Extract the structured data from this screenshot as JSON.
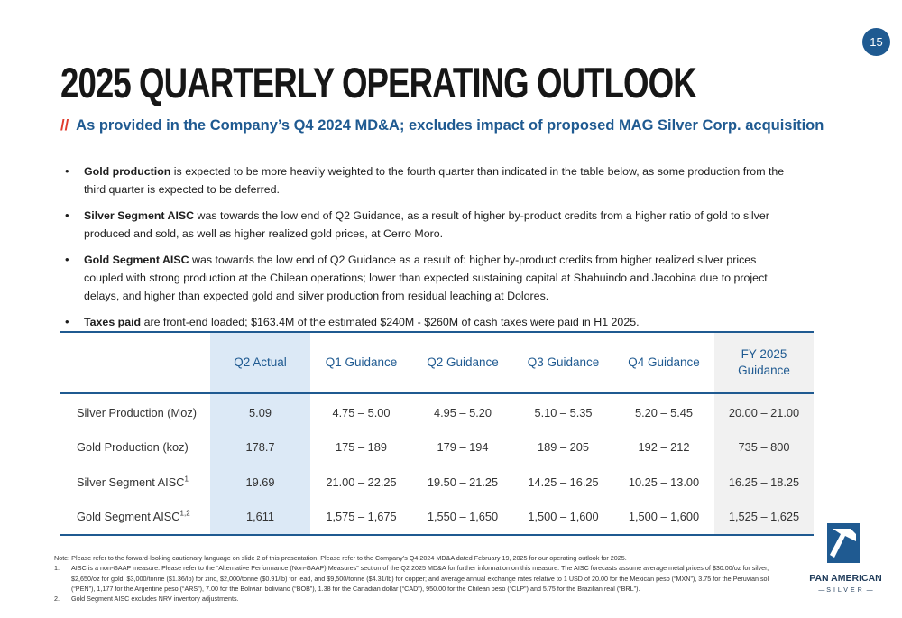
{
  "page_number": "15",
  "title": "2025 QUARTERLY OPERATING OUTLOOK",
  "subtitle": {
    "slashes": "//",
    "text": "As provided in the Company’s Q4 2024 MD&A; excludes impact of proposed MAG Silver Corp. acquisition"
  },
  "bullets": [
    {
      "bold": "Gold production",
      "text": " is expected to be more heavily weighted to the fourth quarter than indicated in the table below, as some production from the third quarter is expected to be deferred."
    },
    {
      "bold": "Silver Segment AISC",
      "text": " was towards the low end of Q2 Guidance, as a result of higher by-product credits from a higher ratio of gold to silver produced and sold, as well as higher realized gold prices, at Cerro Moro."
    },
    {
      "bold": "Gold Segment AISC",
      "text": " was towards the low end of Q2 Guidance as a result of: higher by-product credits from higher realized silver prices coupled with strong production at the Chilean operations; lower than expected sustaining capital at Shahuindo and Jacobina due to project delays, and higher than expected gold and silver production from residual leaching at Dolores."
    },
    {
      "bold": "Taxes paid",
      "text": " are front-end loaded; $163.4M of the estimated $240M - $260M of cash taxes were paid in H1 2025."
    }
  ],
  "table": {
    "headers": [
      "",
      "Q2 Actual",
      "Q1 Guidance",
      "Q2 Guidance",
      "Q3 Guidance",
      "Q4 Guidance",
      "FY 2025 Guidance"
    ],
    "rows": [
      {
        "label": "Silver Production (Moz)",
        "sup": "",
        "cells": [
          "5.09",
          "4.75 – 5.00",
          "4.95 – 5.20",
          "5.10 – 5.35",
          "5.20 – 5.45",
          "20.00 – 21.00"
        ]
      },
      {
        "label": "Gold Production (koz)",
        "sup": "",
        "cells": [
          "178.7",
          "175 – 189",
          "179 – 194",
          "189 – 205",
          "192 – 212",
          "735 – 800"
        ]
      },
      {
        "label": "Silver Segment AISC",
        "sup": "1",
        "cells": [
          "19.69",
          "21.00 – 22.25",
          "19.50 – 21.25",
          "14.25 – 16.25",
          "10.25 – 13.00",
          "16.25 – 18.25"
        ]
      },
      {
        "label": "Gold Segment AISC",
        "sup": "1,2",
        "cells": [
          "1,611",
          "1,575 – 1,675",
          "1,550 – 1,650",
          "1,500 – 1,600",
          "1,500 – 1,600",
          "1,525 – 1,625"
        ]
      }
    ]
  },
  "notes": {
    "main": "Note: Please refer to the forward-looking cautionary language on slide 2 of this presentation. Please refer to the Company’s Q4 2024 MD&A dated February 19, 2025 for our operating outlook for 2025.",
    "footnotes": [
      {
        "num": "1.",
        "text": "AISC is a non-GAAP measure. Please refer to the “Alternative Performance (Non-GAAP) Measures” section of the Q2 2025 MD&A for further information on this measure. The AISC forecasts assume average metal prices of $30.00/oz for silver, $2,650/oz for gold, $3,000/tonne ($1.36/lb) for zinc, $2,000/tonne ($0.91/lb) for lead, and $9,500/tonne ($4.31/lb) for copper; and average annual exchange rates relative to 1 USD of 20.00 for the Mexican peso (“MXN”), 3.75 for the Peruvian sol (“PEN”), 1,177 for the Argentine peso (“ARS”), 7.00 for the Bolivian boliviano (“BOB”), 1.38 for the Canadian dollar (“CAD”), 950.00 for the Chilean peso (“CLP”) and 5.75 for the Brazilian real (“BRL”)."
      },
      {
        "num": "2.",
        "text": "Gold Segment AISC excludes NRV inventory adjustments."
      }
    ]
  },
  "logo": {
    "name": "PAN AMERICAN",
    "sub": "SILVER",
    "icon": "pan-american-logo-icon"
  },
  "colors": {
    "brand_blue": "#1f5a91",
    "accent_red": "#e03b2c",
    "highlight_col": "#dce9f6",
    "fy_col": "#f1f1f1"
  }
}
